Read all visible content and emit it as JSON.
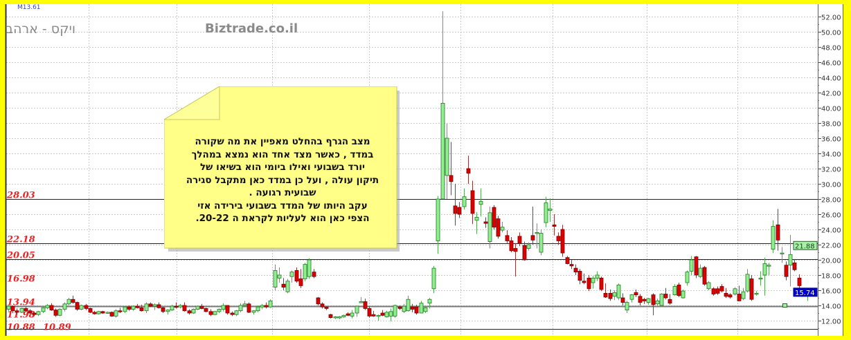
{
  "header": {
    "symbol_code": "M13.61",
    "instrument_title": "ויקס - ארהב",
    "site": "Biztrade.co.il"
  },
  "note": {
    "text": "מצב הגרף בהחלט מאפיין את מה שקורה\nבמדד , כאשר מצד אחד הוא נמצא במהלך\nיורד בשבועי ואילו ביומי הוא  בשיאו של\nתיקון עולה , ועל כן במדד כאן מתקבל סגירה\nשבועית רגועה .\nעקב היותו של המדד בשבועי  בירידה אזי\nהצפי כאן הוא לעליות לקראת ה 20-22."
  },
  "colors": {
    "background": "#ffff00",
    "up_candle": "#90ee90",
    "down_candle": "#dd0000",
    "level_label": "#ee2222",
    "last_price_tag": "#0000cc",
    "prev_price_tag": "#a8f0a8",
    "note_fill": "#ffff88"
  },
  "chart_data": {
    "type": "candlestick",
    "ylim": [
      11,
      53
    ],
    "y_ticks": [
      "12.00",
      "14.00",
      "16.00",
      "18.00",
      "20.00",
      "22.00",
      "24.00",
      "26.00",
      "28.00",
      "30.00",
      "32.00",
      "34.00",
      "36.00",
      "38.00",
      "40.00",
      "42.00",
      "44.00",
      "46.00",
      "48.00",
      "50.00",
      "52.00"
    ],
    "y_axis_side": "right",
    "grid": true,
    "levels": [
      {
        "value": 28.03,
        "label": "28.03",
        "line": true
      },
      {
        "value": 22.18,
        "label": "22.18",
        "line": true
      },
      {
        "value": 20.05,
        "label": "20.05",
        "line": true
      },
      {
        "value": 16.98,
        "label": "16.98",
        "line": false
      },
      {
        "value": 13.94,
        "label": "13.94",
        "line": true
      },
      {
        "value": 11.98,
        "label": "11.98",
        "line": false
      },
      {
        "value": 10.88,
        "label": "10.88",
        "line": false
      },
      {
        "value": 10.89,
        "label": "10.89",
        "line": true
      }
    ],
    "price_tags": [
      {
        "value": 21.88,
        "label": "21.88",
        "kind": "prev"
      },
      {
        "value": 15.74,
        "label": "15.74",
        "kind": "last"
      }
    ],
    "ohlc": [
      [
        13.5,
        14.1,
        13.2,
        13.9
      ],
      [
        13.9,
        14.0,
        13.0,
        13.3
      ],
      [
        13.3,
        13.6,
        12.8,
        13.1
      ],
      [
        13.1,
        13.7,
        13.0,
        13.6
      ],
      [
        13.6,
        13.8,
        13.2,
        13.3
      ],
      [
        13.3,
        13.5,
        12.9,
        13.0
      ],
      [
        13.0,
        13.1,
        12.6,
        12.8
      ],
      [
        12.8,
        13.3,
        12.6,
        13.2
      ],
      [
        13.2,
        13.8,
        13.0,
        13.7
      ],
      [
        13.7,
        14.2,
        13.5,
        14.0
      ],
      [
        14.0,
        14.3,
        13.3,
        13.4
      ],
      [
        13.4,
        13.6,
        12.5,
        12.7
      ],
      [
        12.7,
        13.6,
        12.6,
        13.5
      ],
      [
        13.5,
        14.4,
        13.2,
        14.2
      ],
      [
        14.2,
        15.0,
        14.0,
        14.8
      ],
      [
        14.8,
        15.3,
        14.2,
        14.4
      ],
      [
        14.4,
        14.5,
        13.3,
        13.5
      ],
      [
        13.5,
        14.1,
        13.4,
        14.0
      ],
      [
        14.0,
        14.2,
        13.4,
        13.6
      ],
      [
        13.6,
        13.7,
        13.0,
        13.1
      ],
      [
        13.1,
        13.3,
        12.8,
        12.9
      ],
      [
        12.9,
        13.3,
        12.8,
        13.2
      ],
      [
        13.2,
        13.3,
        12.9,
        13.0
      ],
      [
        13.0,
        13.2,
        12.9,
        13.1
      ],
      [
        13.1,
        13.2,
        12.5,
        12.6
      ],
      [
        12.6,
        13.5,
        12.4,
        13.3
      ],
      [
        13.3,
        13.7,
        13.0,
        13.2
      ],
      [
        13.2,
        13.9,
        13.0,
        13.8
      ],
      [
        13.8,
        14.0,
        13.3,
        13.5
      ],
      [
        13.5,
        14.0,
        13.3,
        13.9
      ],
      [
        13.9,
        14.2,
        13.6,
        13.7
      ],
      [
        13.7,
        14.1,
        13.2,
        13.3
      ],
      [
        13.3,
        14.4,
        13.0,
        14.2
      ],
      [
        14.2,
        14.4,
        13.8,
        13.9
      ],
      [
        13.9,
        14.3,
        13.4,
        14.1
      ],
      [
        14.1,
        14.4,
        13.6,
        13.7
      ],
      [
        13.7,
        13.8,
        13.0,
        13.2
      ],
      [
        13.2,
        13.5,
        12.8,
        13.4
      ],
      [
        13.4,
        14.1,
        13.3,
        13.9
      ],
      [
        13.9,
        14.4,
        13.6,
        13.8
      ],
      [
        13.8,
        14.2,
        13.6,
        14.0
      ],
      [
        14.0,
        14.4,
        13.2,
        13.3
      ],
      [
        13.3,
        13.5,
        12.8,
        13.0
      ],
      [
        13.0,
        13.6,
        12.9,
        13.5
      ],
      [
        13.5,
        14.0,
        13.4,
        13.9
      ],
      [
        13.9,
        14.2,
        13.5,
        13.6
      ],
      [
        13.6,
        13.7,
        13.1,
        13.2
      ],
      [
        13.2,
        13.5,
        12.6,
        12.8
      ],
      [
        12.8,
        13.3,
        12.7,
        13.2
      ],
      [
        13.2,
        13.6,
        13.0,
        13.5
      ],
      [
        13.5,
        14.3,
        13.2,
        14.0
      ],
      [
        14.0,
        14.0,
        12.8,
        13.0
      ],
      [
        13.0,
        13.2,
        12.6,
        12.8
      ],
      [
        12.8,
        13.4,
        12.6,
        13.3
      ],
      [
        13.3,
        14.3,
        13.1,
        14.0
      ],
      [
        14.0,
        14.6,
        13.9,
        14.2
      ],
      [
        14.2,
        14.4,
        13.0,
        13.1
      ],
      [
        13.1,
        13.4,
        12.8,
        13.3
      ],
      [
        13.3,
        14.0,
        13.1,
        13.8
      ],
      [
        13.8,
        14.2,
        13.5,
        14.0
      ],
      [
        14.0,
        14.4,
        13.6,
        13.8
      ],
      [
        13.8,
        14.8,
        13.7,
        14.6
      ],
      [
        16.4,
        19.4,
        16.0,
        18.6
      ],
      [
        17.6,
        19.0,
        17.0,
        18.0
      ],
      [
        16.8,
        17.6,
        16.0,
        16.4
      ],
      [
        15.8,
        17.5,
        15.6,
        17.2
      ],
      [
        17.8,
        18.6,
        17.0,
        18.4
      ],
      [
        18.6,
        19.0,
        17.0,
        17.2
      ],
      [
        17.5,
        18.8,
        16.3,
        16.6
      ],
      [
        17.5,
        19.6,
        17.2,
        19.4
      ],
      [
        17.8,
        20.2,
        17.5,
        20.0
      ],
      [
        18.4,
        18.8,
        17.6,
        17.8
      ],
      [
        15.0,
        15.1,
        14.0,
        14.2
      ],
      [
        14.2,
        14.4,
        13.6,
        13.8
      ],
      [
        13.8,
        13.9,
        13.4,
        13.6
      ],
      [
        12.8,
        12.9,
        12.3,
        12.4
      ],
      [
        12.4,
        12.6,
        12.2,
        12.5
      ],
      [
        12.5,
        12.6,
        12.2,
        12.5
      ],
      [
        12.5,
        12.8,
        12.4,
        12.7
      ],
      [
        12.9,
        13.1,
        12.6,
        12.7
      ],
      [
        12.6,
        13.4,
        12.3,
        13.0
      ],
      [
        13.0,
        14.0,
        12.5,
        13.9
      ],
      [
        14.4,
        15.1,
        14.3,
        14.5
      ],
      [
        14.5,
        14.9,
        13.4,
        13.6
      ],
      [
        13.6,
        13.9,
        12.4,
        12.6
      ],
      [
        12.8,
        13.3,
        12.5,
        12.6
      ],
      [
        12.6,
        12.8,
        12.0,
        12.7
      ],
      [
        13.0,
        13.4,
        12.6,
        12.7
      ],
      [
        12.5,
        13.3,
        12.4,
        13.1
      ],
      [
        12.6,
        13.6,
        11.9,
        13.2
      ],
      [
        12.6,
        14.1,
        12.4,
        14.0
      ],
      [
        13.8,
        14.0,
        13.4,
        13.6
      ],
      [
        13.2,
        14.2,
        13.0,
        13.9
      ],
      [
        13.3,
        15.3,
        13.2,
        14.8
      ],
      [
        13.8,
        14.2,
        13.1,
        13.5
      ],
      [
        13.8,
        14.1,
        12.8,
        13.0
      ],
      [
        13.0,
        14.6,
        13.0,
        14.3
      ],
      [
        13.2,
        13.8,
        13.0,
        13.7
      ],
      [
        14.3,
        15.0,
        13.6,
        14.8
      ],
      [
        16.2,
        19.2,
        15.6,
        18.9
      ],
      [
        22.5,
        28.4,
        20.8,
        28.0
      ],
      [
        28.0,
        52.7,
        28.0,
        40.6
      ],
      [
        31.1,
        37.9,
        28.0,
        36.0
      ],
      [
        31.1,
        35.5,
        28.5,
        30.3
      ],
      [
        27.1,
        30.0,
        24.5,
        26.1
      ],
      [
        26.9,
        27.6,
        25.5,
        26.0
      ],
      [
        27.0,
        29.4,
        26.6,
        28.3
      ],
      [
        32.0,
        33.7,
        30.0,
        31.4
      ],
      [
        29.1,
        30.4,
        24.7,
        26.1
      ],
      [
        25.2,
        26.3,
        23.4,
        25.6
      ],
      [
        27.3,
        29.4,
        25.7,
        27.7
      ],
      [
        25.0,
        25.6,
        24.2,
        24.8
      ],
      [
        22.4,
        27.0,
        21.5,
        26.2
      ],
      [
        26.9,
        27.2,
        24.0,
        24.3
      ],
      [
        25.4,
        25.8,
        22.8,
        23.1
      ],
      [
        23.9,
        25.0,
        23.6,
        24.3
      ],
      [
        23.2,
        23.9,
        22.2,
        22.5
      ],
      [
        22.5,
        23.0,
        21.0,
        21.2
      ],
      [
        21.5,
        22.2,
        17.8,
        21.1
      ],
      [
        23.1,
        23.6,
        21.8,
        22.2
      ],
      [
        21.9,
        22.4,
        19.9,
        20.0
      ],
      [
        21.5,
        22.3,
        21.2,
        22.0
      ],
      [
        23.2,
        27.0,
        22.0,
        22.6
      ],
      [
        23.6,
        24.8,
        21.5,
        23.6
      ],
      [
        21.0,
        24.0,
        20.6,
        23.5
      ],
      [
        24.9,
        28.3,
        24.3,
        27.5
      ],
      [
        26.5,
        28.1,
        25.0,
        26.7
      ],
      [
        24.6,
        26.0,
        23.2,
        24.4
      ],
      [
        23.1,
        23.6,
        22.0,
        22.5
      ],
      [
        24.0,
        24.6,
        20.4,
        20.9
      ],
      [
        20.3,
        20.5,
        19.4,
        19.5
      ],
      [
        19.4,
        20.0,
        18.8,
        19.2
      ],
      [
        18.9,
        19.4,
        18.0,
        18.4
      ],
      [
        18.5,
        18.8,
        16.8,
        17.3
      ],
      [
        17.2,
        18.2,
        16.8,
        17.0
      ],
      [
        17.6,
        18.0,
        15.9,
        16.2
      ],
      [
        17.0,
        17.9,
        16.2,
        17.6
      ],
      [
        17.6,
        18.5,
        17.2,
        18.0
      ],
      [
        17.6,
        17.8,
        15.9,
        16.1
      ],
      [
        15.6,
        16.9,
        15.0,
        15.1
      ],
      [
        15.6,
        16.1,
        14.6,
        14.9
      ],
      [
        15.2,
        16.0,
        14.7,
        15.7
      ],
      [
        15.0,
        16.9,
        14.7,
        16.7
      ],
      [
        15.0,
        15.6,
        14.0,
        14.4
      ],
      [
        13.4,
        14.6,
        13.0,
        14.4
      ],
      [
        14.8,
        15.5,
        14.4,
        15.4
      ],
      [
        15.7,
        16.1,
        15.1,
        15.4
      ],
      [
        15.2,
        15.5,
        14.0,
        14.4
      ],
      [
        14.8,
        15.0,
        14.2,
        14.6
      ],
      [
        14.4,
        15.0,
        14.1,
        14.9
      ],
      [
        15.4,
        15.6,
        12.7,
        14.1
      ],
      [
        14.2,
        14.9,
        14.0,
        14.6
      ],
      [
        14.0,
        15.6,
        13.8,
        15.5
      ],
      [
        15.5,
        16.3,
        14.8,
        15.0
      ],
      [
        14.8,
        15.5,
        14.1,
        14.3
      ],
      [
        15.4,
        16.8,
        15.3,
        16.5
      ],
      [
        16.7,
        17.0,
        15.1,
        15.3
      ],
      [
        15.0,
        16.1,
        14.9,
        15.9
      ],
      [
        17.0,
        18.6,
        16.6,
        18.4
      ],
      [
        18.5,
        20.5,
        18.0,
        20.0
      ],
      [
        20.4,
        20.5,
        17.6,
        18.0
      ],
      [
        17.8,
        19.4,
        17.6,
        18.9
      ],
      [
        19.0,
        19.2,
        16.6,
        16.8
      ],
      [
        16.2,
        17.2,
        16.0,
        17.0
      ],
      [
        16.2,
        16.4,
        15.3,
        15.5
      ],
      [
        16.2,
        16.5,
        15.4,
        15.6
      ],
      [
        16.5,
        16.8,
        15.7,
        15.9
      ],
      [
        15.6,
        16.3,
        15.0,
        15.2
      ],
      [
        15.4,
        15.6,
        14.9,
        15.1
      ],
      [
        15.5,
        16.4,
        15.3,
        16.2
      ],
      [
        15.5,
        16.6,
        14.6,
        14.6
      ],
      [
        14.9,
        16.3,
        14.7,
        15.8
      ],
      [
        15.9,
        18.8,
        15.7,
        18.1
      ],
      [
        17.5,
        18.0,
        14.6,
        14.8
      ],
      [
        15.5,
        15.9,
        15.3,
        15.6
      ],
      [
        17.6,
        18.5,
        16.6,
        17.6
      ],
      [
        18.0,
        20.3,
        15.3,
        19.5
      ],
      [
        19.3,
        19.6,
        18.0,
        19.3
      ],
      [
        21.4,
        25.2,
        20.9,
        24.4
      ],
      [
        24.6,
        26.7,
        21.2,
        22.6
      ],
      [
        20.8,
        21.7,
        19.6,
        20.9
      ],
      [
        19.3,
        19.8,
        17.3,
        17.8
      ],
      [
        19.3,
        23.3,
        16.5,
        20.7
      ],
      [
        19.6,
        20.1,
        18.5,
        18.7
      ],
      [
        17.6,
        18.1,
        16.2,
        16.6
      ],
      [
        15.8,
        16.2,
        15.2,
        15.4
      ],
      [
        15.4,
        15.8,
        14.6,
        15.74
      ]
    ]
  }
}
